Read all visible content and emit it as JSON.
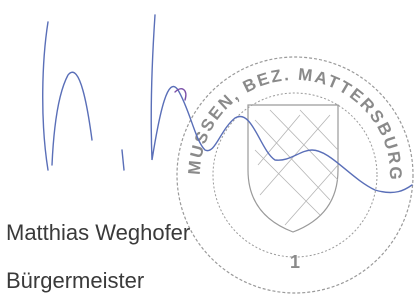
{
  "stamp": {
    "text": "MUSSEN, BEZ. MATTERSBURG",
    "number": "1"
  },
  "signatory": {
    "name": "Matthias Weghofer",
    "title": "Bürgermeister"
  }
}
